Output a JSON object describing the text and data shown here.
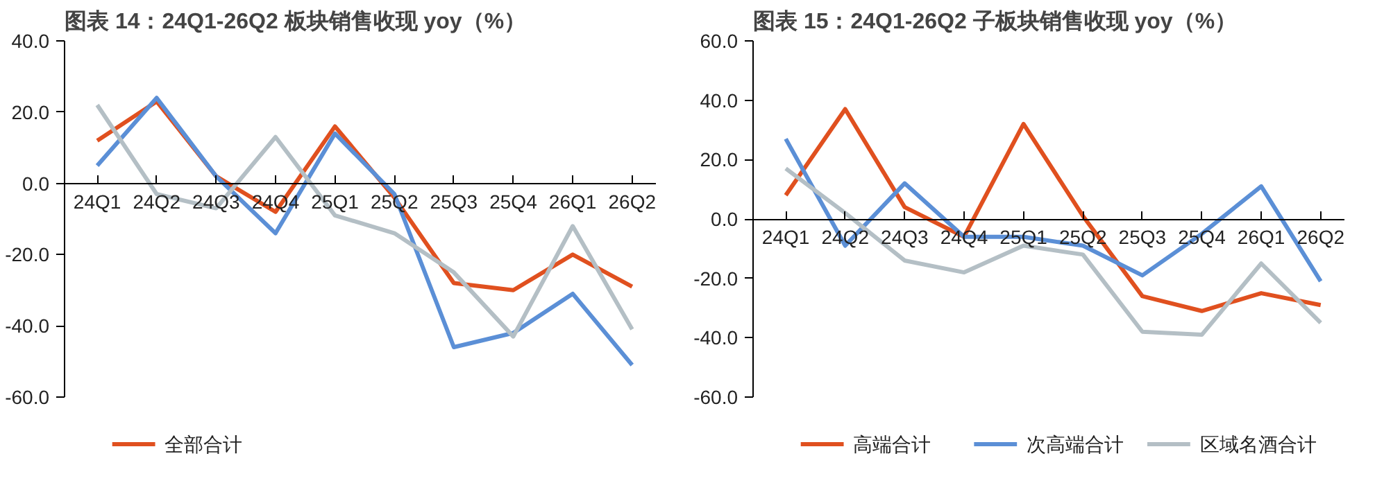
{
  "chart_data": [
    {
      "type": "line",
      "title": "图表 14：24Q1-26Q2 板块销售收现 yoy（%）",
      "categories": [
        "24Q1",
        "24Q2",
        "24Q3",
        "24Q4",
        "25Q1",
        "25Q2",
        "25Q3",
        "25Q4",
        "26Q1",
        "26Q2"
      ],
      "ylim": [
        -60,
        40
      ],
      "yticks": [
        {
          "value": -60,
          "label": "-60.0"
        },
        {
          "value": -40,
          "label": "-40.0"
        },
        {
          "value": -20,
          "label": "-20.0"
        },
        {
          "value": 0,
          "label": "0.0"
        },
        {
          "value": 20,
          "label": "20.0"
        },
        {
          "value": 40,
          "label": "40.0"
        }
      ],
      "grid": false,
      "legend": "bottom",
      "series": [
        {
          "name": "全部合计",
          "color": "#e0501f",
          "values": [
            12,
            23,
            2,
            -8,
            16,
            -4,
            -28,
            -30,
            -20,
            -29
          ]
        },
        {
          "color": "#5b8fd6",
          "values": [
            5,
            24,
            2,
            -14,
            14,
            -3,
            -46,
            -42,
            -31,
            -51
          ]
        },
        {
          "color": "#b4bfc5",
          "values": [
            22,
            -3,
            -7,
            13,
            -9,
            -14,
            -25,
            -43,
            -12,
            -41
          ]
        }
      ]
    },
    {
      "type": "line",
      "title": "图表 15：24Q1-26Q2 子板块销售收现 yoy（%）",
      "categories": [
        "24Q1",
        "24Q2",
        "24Q3",
        "24Q4",
        "25Q1",
        "25Q2",
        "25Q3",
        "25Q4",
        "26Q1",
        "26Q2"
      ],
      "ylim": [
        -60,
        60
      ],
      "yticks": [
        {
          "value": -60,
          "label": "-60.0"
        },
        {
          "value": -40,
          "label": "-40.0"
        },
        {
          "value": -20,
          "label": "-20.0"
        },
        {
          "value": 0,
          "label": "0.0"
        },
        {
          "value": 20,
          "label": "20.0"
        },
        {
          "value": 40,
          "label": "40.0"
        },
        {
          "value": 60,
          "label": "60.0"
        }
      ],
      "grid": false,
      "legend": "bottom",
      "series": [
        {
          "name": "高端合计",
          "color": "#e0501f",
          "values": [
            8,
            37,
            4,
            -6,
            32,
            1,
            -26,
            -31,
            -25,
            -29
          ]
        },
        {
          "name": "次高端合计",
          "color": "#5b8fd6",
          "values": [
            27,
            -9,
            12,
            -6,
            -6,
            -9,
            -19,
            -5,
            11,
            -21
          ]
        },
        {
          "name": "区域名酒合计",
          "color": "#b4bfc5",
          "values": [
            17,
            2,
            -14,
            -18,
            -9,
            -12,
            -38,
            -39,
            -15,
            -35
          ]
        }
      ]
    }
  ]
}
